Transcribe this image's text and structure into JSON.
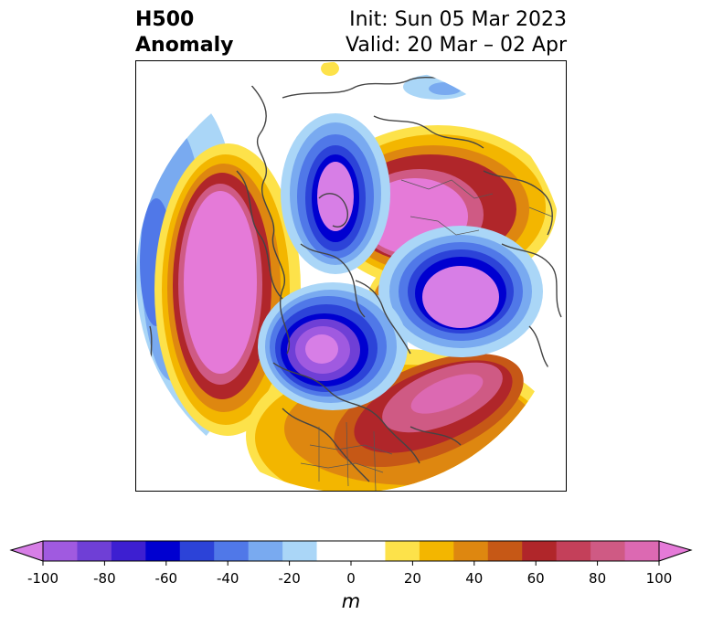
{
  "title": {
    "left_line1": "H500",
    "left_line2": "Anomaly",
    "init": "Init: Sun 05 Mar 2023",
    "valid": "Valid: 20 Mar – 02 Apr"
  },
  "colorbar": {
    "min": -100,
    "max": 100,
    "step": 10,
    "tick_labels": [
      "-100",
      "-80",
      "-60",
      "-40",
      "-20",
      "0",
      "20",
      "40",
      "60",
      "80",
      "100"
    ],
    "unit": "m",
    "colors": [
      "#d77ee6",
      "#a05ae0",
      "#6f3fd6",
      "#3d1fd1",
      "#0000d0",
      "#2c43d8",
      "#5078e8",
      "#79aaf0",
      "#aad6f7",
      "#ffffff",
      "#ffffff",
      "#fde24a",
      "#f3b600",
      "#de8710",
      "#c65816",
      "#b0262a",
      "#c4405a",
      "#cf5a84",
      "#dc69b2",
      "#e57ad8"
    ],
    "extend": "both"
  },
  "map": {
    "projection": "north-polar-stereographic",
    "field": "500 hPa geopotential height anomaly"
  }
}
